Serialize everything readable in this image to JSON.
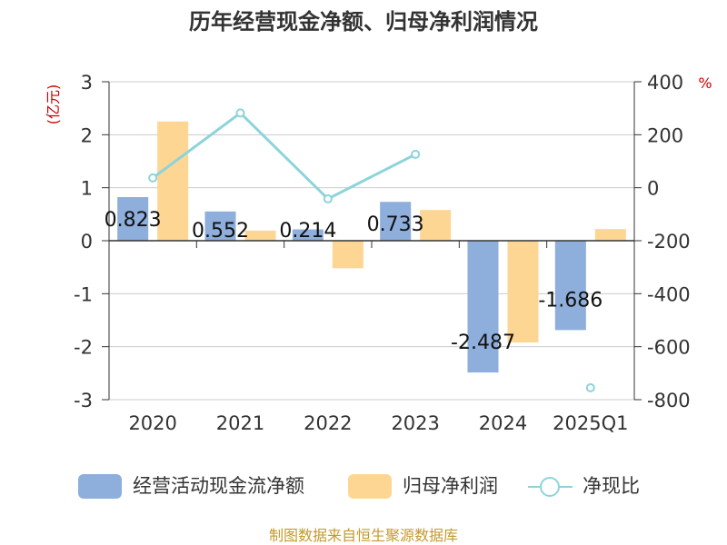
{
  "chart_data": {
    "type": "bar",
    "title": "历年经营现金净额、归母净利润情况",
    "categories": [
      "2020",
      "2021",
      "2022",
      "2023",
      "2024",
      "2025Q1"
    ],
    "series": [
      {
        "name": "经营活动现金流净额",
        "type": "bar",
        "axis": "left",
        "color": "#8eaedb",
        "values": [
          0.823,
          0.552,
          0.214,
          0.733,
          -2.487,
          -1.686
        ],
        "labels": [
          "0.823",
          "0.552",
          "0.214",
          "0.733",
          "-2.487",
          "-1.686"
        ]
      },
      {
        "name": "归母净利润",
        "type": "bar",
        "axis": "left",
        "color": "#fed694",
        "values": [
          2.25,
          0.19,
          -0.52,
          0.58,
          -1.92,
          0.22
        ]
      },
      {
        "name": "净现比",
        "type": "line",
        "axis": "right",
        "color": "#8dd4da",
        "values": [
          37,
          282,
          -42,
          126,
          null,
          -755
        ]
      }
    ],
    "left_axis": {
      "unit_label": "(亿元)",
      "min": -3,
      "max": 3,
      "ticks": [
        "3",
        "2",
        "1",
        "0",
        "-1",
        "-2",
        "-3"
      ]
    },
    "right_axis": {
      "unit_label": "%",
      "min": -800,
      "max": 400,
      "ticks": [
        "400",
        "200",
        "0",
        "-200",
        "-400",
        "-600",
        "-800"
      ]
    },
    "grid": true,
    "legend_position": "bottom"
  },
  "source": "制图数据来自恒生聚源数据库"
}
